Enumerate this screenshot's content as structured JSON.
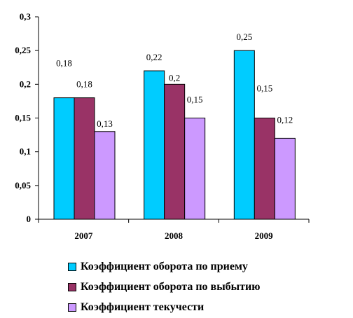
{
  "chart_data": {
    "type": "bar",
    "categories": [
      "2007",
      "2008",
      "2009"
    ],
    "series": [
      {
        "name": "Коэффициент оборота по приему",
        "values": [
          0.18,
          0.22,
          0.25
        ],
        "labels": [
          "0,18",
          "0,22",
          "0,25"
        ],
        "color": "#00CCFF"
      },
      {
        "name": "Коэффициент оборота по выбытию",
        "values": [
          0.18,
          0.2,
          0.15
        ],
        "labels": [
          "0,18",
          "0,2",
          "0,15"
        ],
        "color": "#993366"
      },
      {
        "name": "Коэффициент текучести",
        "values": [
          0.13,
          0.15,
          0.12
        ],
        "labels": [
          "0,13",
          "0,15",
          "0,12"
        ],
        "color": "#CC99FF"
      }
    ],
    "y_ticks": [
      0,
      0.05,
      0.1,
      0.15,
      0.2,
      0.25,
      0.3
    ],
    "y_tick_labels": [
      "0",
      "0,05",
      "0,1",
      "0,15",
      "0,2",
      "0,25",
      "0,3"
    ],
    "ylim": [
      0,
      0.3
    ],
    "grid": false,
    "legend_position": "bottom"
  }
}
